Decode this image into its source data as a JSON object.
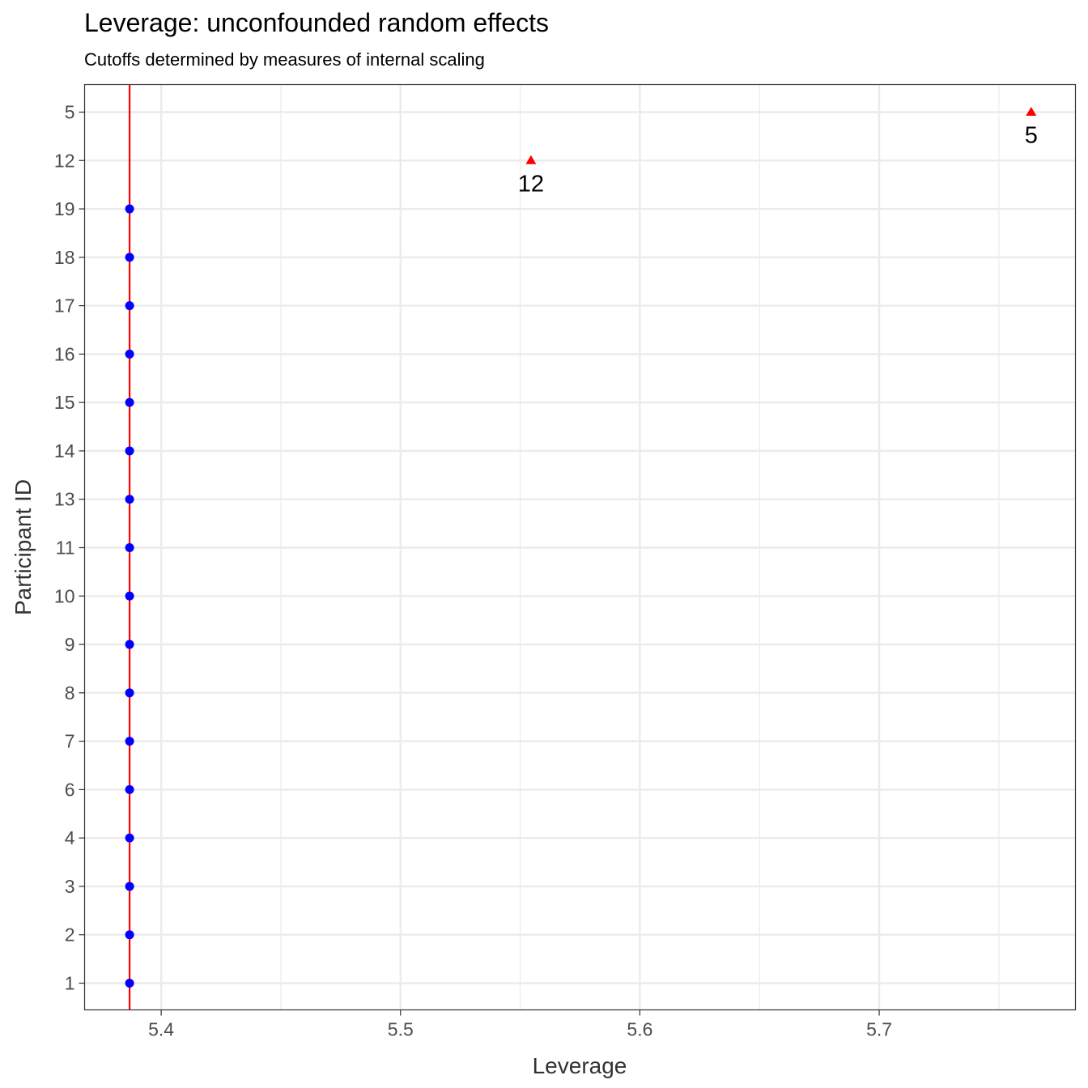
{
  "chart_data": {
    "type": "scatter",
    "title": "Leverage: unconfounded random effects",
    "subtitle": "Cutoffs determined by measures of internal scaling",
    "xlabel": "Leverage",
    "ylabel": "Participant ID",
    "xlim": [
      5.368,
      5.782
    ],
    "x_ticks": [
      5.4,
      5.5,
      5.6,
      5.7
    ],
    "x_tick_labels": [
      "5.4",
      "5.5",
      "5.6",
      "5.7"
    ],
    "categories": [
      "1",
      "2",
      "3",
      "4",
      "6",
      "7",
      "8",
      "9",
      "10",
      "11",
      "13",
      "14",
      "15",
      "16",
      "17",
      "18",
      "19",
      "12",
      "5"
    ],
    "grid": true,
    "cutoff_line": {
      "x": 5.3868,
      "color": "#ff0000"
    },
    "series": [
      {
        "marker": "circle",
        "color": "#0000ff",
        "points": [
          {
            "id": "1",
            "x": 5.3868
          },
          {
            "id": "2",
            "x": 5.3868
          },
          {
            "id": "3",
            "x": 5.3868
          },
          {
            "id": "4",
            "x": 5.3868
          },
          {
            "id": "6",
            "x": 5.3868
          },
          {
            "id": "7",
            "x": 5.3868
          },
          {
            "id": "8",
            "x": 5.3868
          },
          {
            "id": "9",
            "x": 5.3868
          },
          {
            "id": "10",
            "x": 5.3868
          },
          {
            "id": "11",
            "x": 5.3868
          },
          {
            "id": "13",
            "x": 5.3868
          },
          {
            "id": "14",
            "x": 5.3868
          },
          {
            "id": "15",
            "x": 5.3868
          },
          {
            "id": "16",
            "x": 5.3868
          },
          {
            "id": "17",
            "x": 5.3868
          },
          {
            "id": "18",
            "x": 5.3868
          },
          {
            "id": "19",
            "x": 5.3868
          }
        ]
      },
      {
        "marker": "triangle",
        "color": "#ff0000",
        "points": [
          {
            "id": "12",
            "x": 5.5545,
            "label": "12"
          },
          {
            "id": "5",
            "x": 5.7635,
            "label": "5"
          }
        ]
      }
    ]
  }
}
